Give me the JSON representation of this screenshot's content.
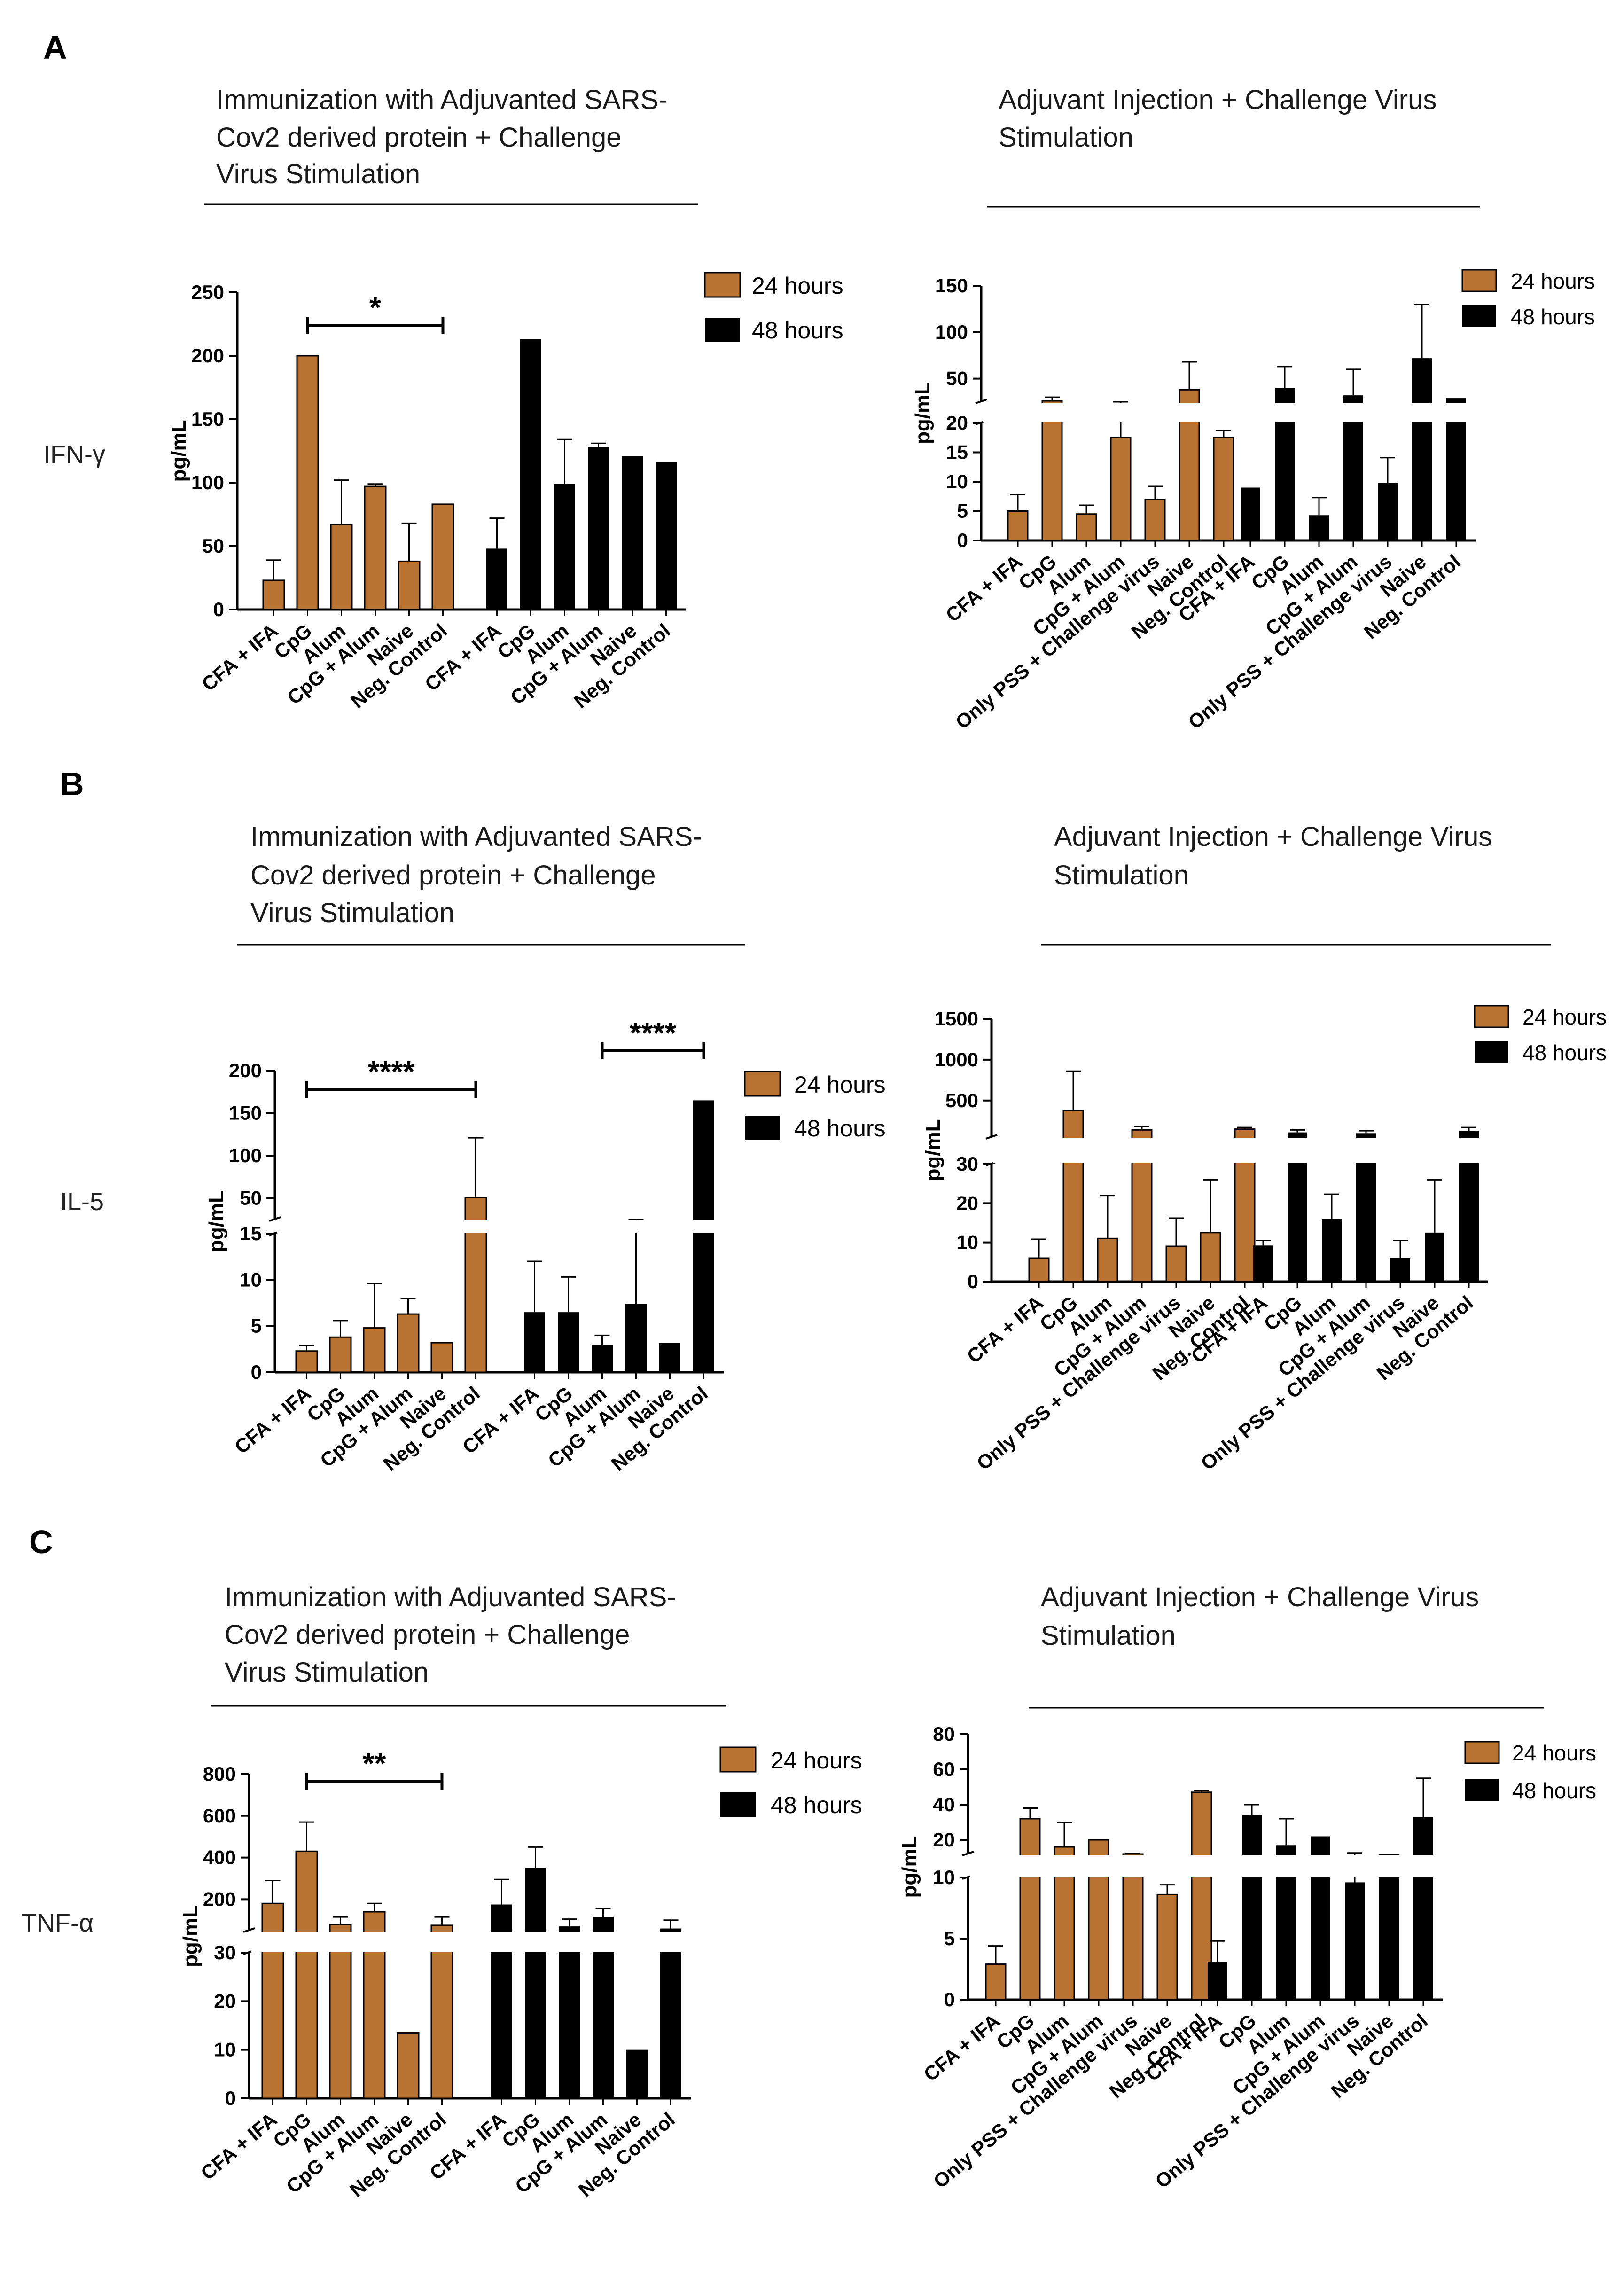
{
  "colors": {
    "h24": "#B87333",
    "h48": "#000000",
    "h24_edge": "#000000"
  },
  "legend": {
    "h24": "24 hours",
    "h48": "48 hours"
  },
  "panels": [
    {
      "letter": "A",
      "row_label": "IFN-γ",
      "left_title": [
        "Immunization with Adjuvanted SARS-",
        "Cov2 derived protein + Challenge",
        "Virus Stimulation"
      ],
      "right_title": [
        "Adjuvant Injection + Challenge Virus",
        "Stimulation"
      ]
    },
    {
      "letter": "B",
      "row_label": "IL-5",
      "left_title": [
        "Immunization with Adjuvanted SARS-",
        "Cov2 derived protein + Challenge",
        "Virus Stimulation"
      ],
      "right_title": [
        "Adjuvant Injection + Challenge Virus",
        "Stimulation"
      ]
    },
    {
      "letter": "C",
      "row_label": "TNF-α",
      "left_title": [
        "Immunization with Adjuvanted SARS-",
        "Cov2 derived protein + Challenge",
        "Virus Stimulation"
      ],
      "right_title": [
        "Adjuvant Injection + Challenge Virus",
        "Stimulation"
      ]
    }
  ],
  "chart_data": [
    {
      "id": "A-left",
      "type": "bar",
      "ylabel": "pg/mL",
      "categories": [
        "CFA + IFA",
        "CpG",
        "Alum",
        "CpG + Alum",
        "Naive",
        "Neg. Control"
      ],
      "segments": [
        {
          "range": [
            0,
            250
          ],
          "ticks": [
            0,
            50,
            100,
            150,
            200,
            250
          ]
        }
      ],
      "series": [
        {
          "name": "24 hours",
          "values": [
            23,
            200,
            67,
            97,
            38,
            83
          ],
          "errors": [
            16,
            null,
            35,
            2,
            30,
            null
          ]
        },
        {
          "name": "48 hours",
          "values": [
            48,
            213,
            99,
            128,
            121,
            116
          ],
          "errors": [
            24,
            null,
            35,
            3,
            null,
            null
          ]
        }
      ],
      "significance": [
        {
          "label": "*",
          "from": 1,
          "to": 5,
          "series": 0
        }
      ]
    },
    {
      "id": "A-right",
      "type": "bar",
      "ylabel": "pg/mL",
      "categories": [
        "CFA + IFA",
        "CpG",
        "Alum",
        "CpG + Alum",
        "Only PSS + Challenge virus",
        "Naive",
        "Neg. Control"
      ],
      "segments": [
        {
          "range": [
            0,
            20
          ],
          "ticks": [
            0,
            5,
            10,
            15,
            20
          ]
        },
        {
          "range": [
            25,
            150
          ],
          "ticks": [
            50,
            100,
            150
          ]
        }
      ],
      "series": [
        {
          "name": "24 hours",
          "values": [
            5,
            26,
            4.5,
            17.5,
            7,
            38,
            17.5
          ],
          "errors": [
            2.8,
            4,
            1.5,
            5,
            2.2,
            30,
            1.2
          ]
        },
        {
          "name": "48 hours",
          "values": [
            9,
            40,
            4.3,
            32,
            9.8,
            72,
            29
          ],
          "errors": [
            null,
            23,
            3,
            28,
            4.3,
            58,
            null
          ]
        }
      ]
    },
    {
      "id": "B-left",
      "type": "bar",
      "ylabel": "pg/mL",
      "categories": [
        "CFA + IFA",
        "CpG",
        "Alum",
        "CpG + Alum",
        "Naive",
        "Neg. Control"
      ],
      "segments": [
        {
          "range": [
            0,
            15
          ],
          "ticks": [
            0,
            5,
            10,
            15
          ]
        },
        {
          "range": [
            25,
            200
          ],
          "ticks": [
            50,
            100,
            150,
            200
          ]
        }
      ],
      "series": [
        {
          "name": "24 hours",
          "values": [
            2.3,
            3.8,
            4.8,
            6.3,
            3.2,
            51
          ],
          "errors": [
            0.6,
            1.8,
            4.8,
            1.7,
            null,
            70
          ]
        },
        {
          "name": "48 hours",
          "values": [
            6.5,
            6.5,
            2.9,
            7.4,
            3.2,
            165
          ],
          "errors": [
            5.5,
            3.8,
            1.1,
            17,
            null,
            null
          ]
        }
      ],
      "significance": [
        {
          "label": "****",
          "from": 0,
          "to": 5,
          "series": 0
        },
        {
          "label": "****",
          "from": 2,
          "to": 5,
          "series": 1
        }
      ]
    },
    {
      "id": "B-right",
      "type": "bar",
      "ylabel": "pg/mL",
      "categories": [
        "CFA + IFA",
        "CpG",
        "Alum",
        "CpG + Alum",
        "Only PSS + Challenge virus",
        "Naive",
        "Neg. Control"
      ],
      "segments": [
        {
          "range": [
            0,
            30
          ],
          "ticks": [
            0,
            10,
            20,
            30
          ]
        },
        {
          "range": [
            50,
            1500
          ],
          "ticks": [
            500,
            1000,
            1500
          ]
        }
      ],
      "series": [
        {
          "name": "24 hours",
          "values": [
            6,
            380,
            11,
            140,
            9,
            12.5,
            150
          ],
          "errors": [
            4.8,
            480,
            11,
            40,
            7.2,
            13.5,
            20
          ]
        },
        {
          "name": "48 hours",
          "values": [
            9.2,
            110,
            16,
            100,
            6,
            12.5,
            130
          ],
          "errors": [
            1.3,
            30,
            6.3,
            30,
            4.5,
            13.5,
            40
          ]
        }
      ]
    },
    {
      "id": "C-left",
      "type": "bar",
      "ylabel": "pg/mL",
      "categories": [
        "CFA + IFA",
        "CpG",
        "Alum",
        "CpG + Alum",
        "Naive",
        "Neg. Control"
      ],
      "segments": [
        {
          "range": [
            0,
            30
          ],
          "ticks": [
            0,
            10,
            20,
            30
          ]
        },
        {
          "range": [
            50,
            800
          ],
          "ticks": [
            200,
            400,
            600,
            800
          ]
        }
      ],
      "series": [
        {
          "name": "24 hours",
          "values": [
            180,
            430,
            80,
            140,
            13.5,
            75
          ],
          "errors": [
            110,
            140,
            35,
            40,
            null,
            40
          ]
        },
        {
          "name": "48 hours",
          "values": [
            175,
            350,
            70,
            115,
            10,
            60
          ],
          "errors": [
            120,
            100,
            35,
            40,
            null,
            40
          ]
        }
      ],
      "significance": [
        {
          "label": "**",
          "from": 1,
          "to": 5,
          "series": 0
        }
      ]
    },
    {
      "id": "C-right",
      "type": "bar",
      "ylabel": "pg/mL",
      "categories": [
        "CFA + IFA",
        "CpG",
        "Alum",
        "CpG + Alum",
        "Only PSS + Challenge virus",
        "Naive",
        "Neg. Control"
      ],
      "segments": [
        {
          "range": [
            0,
            10
          ],
          "ticks": [
            0,
            5,
            10
          ]
        },
        {
          "range": [
            12,
            80
          ],
          "ticks": [
            20,
            40,
            60,
            80
          ]
        }
      ],
      "series": [
        {
          "name": "24 hours",
          "values": [
            2.9,
            32,
            16,
            20,
            11,
            8.6,
            47
          ],
          "errors": [
            1.5,
            6,
            14,
            null,
            1.2,
            0.8,
            1
          ]
        },
        {
          "name": "48 hours",
          "values": [
            3.1,
            34,
            17,
            22,
            9.6,
            11,
            33
          ],
          "errors": [
            1.7,
            6,
            15,
            null,
            3,
            null,
            22
          ]
        }
      ]
    }
  ]
}
